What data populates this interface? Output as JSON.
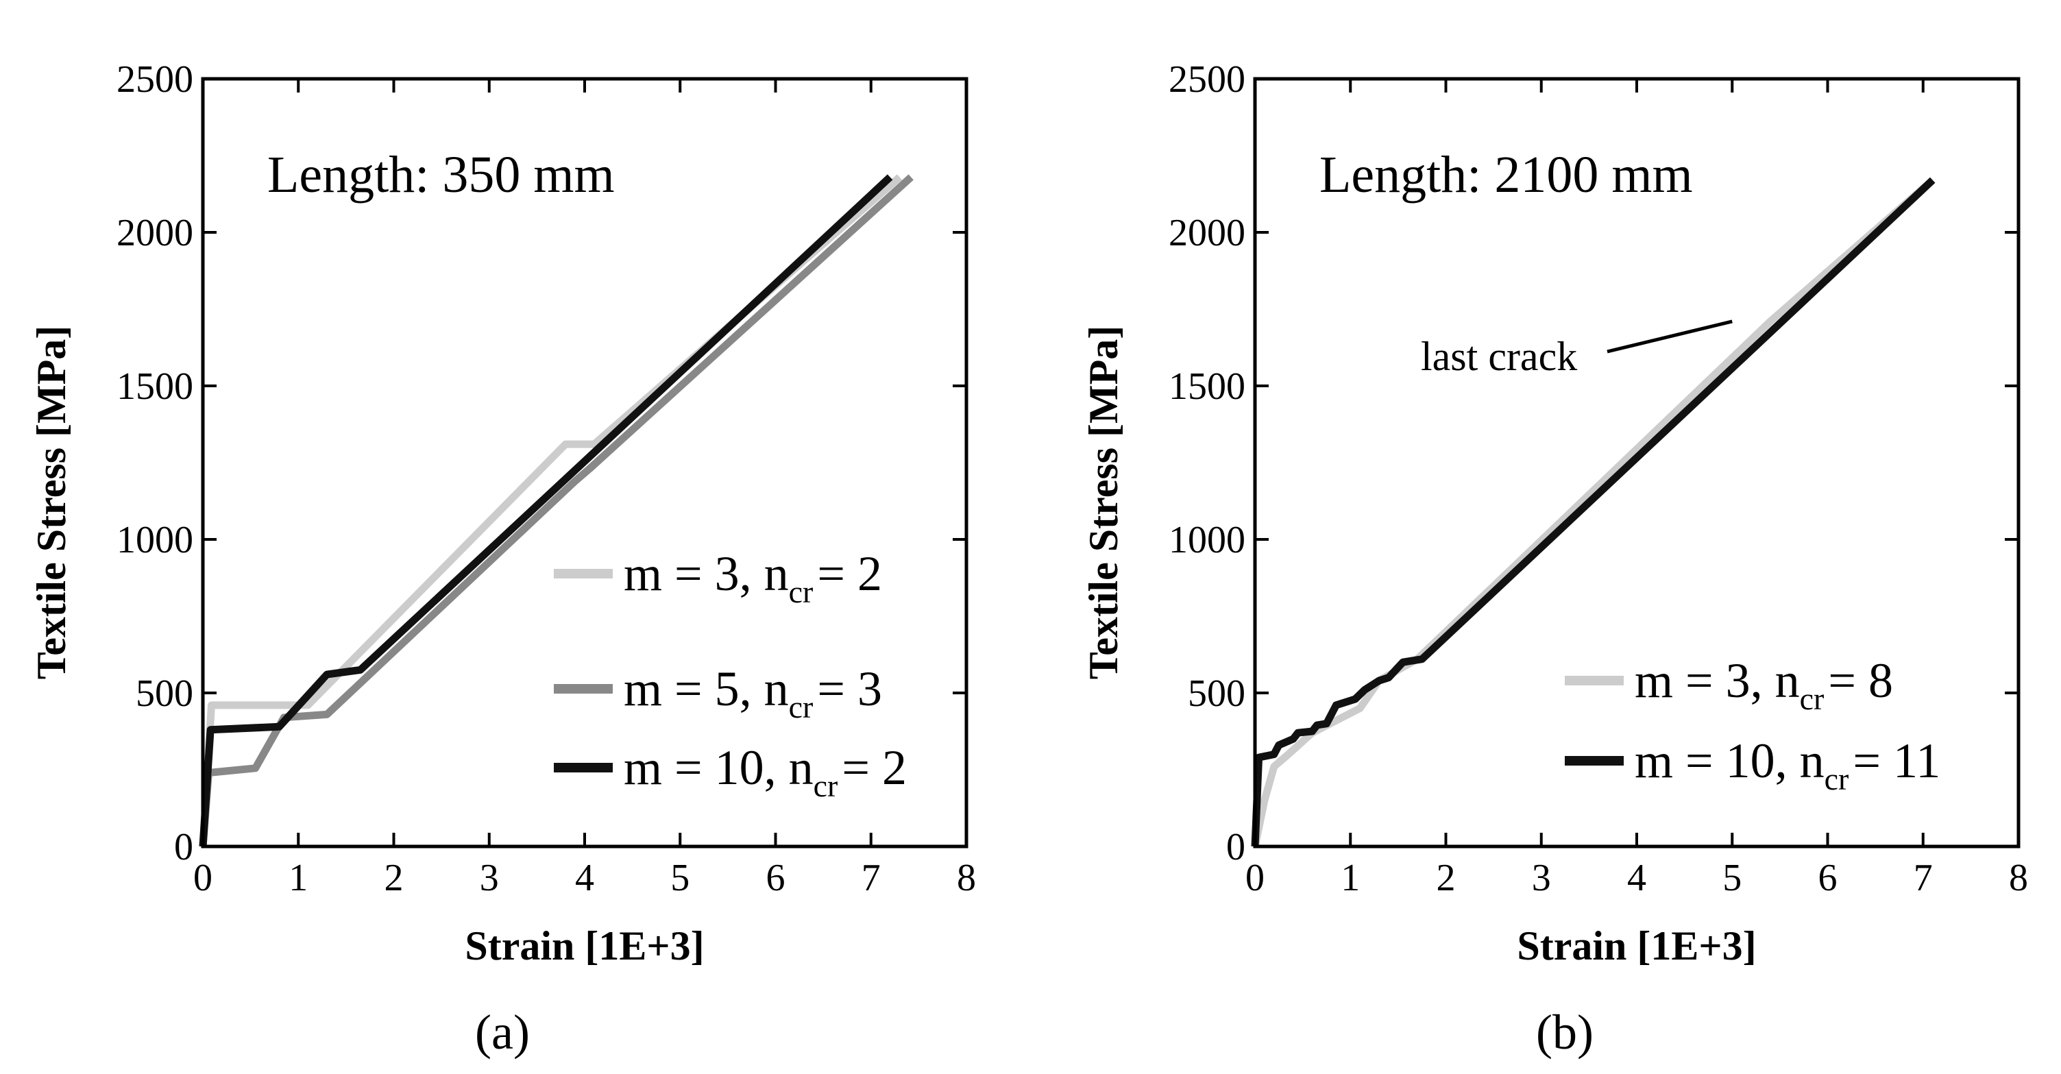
{
  "chart_data": [
    {
      "type": "line",
      "panel": "a",
      "caption": "(a)",
      "title": "Length: 350 mm",
      "xlabel": "Strain [1E+3]",
      "ylabel": "Textile Stress [MPa]",
      "xlim": [
        0,
        8
      ],
      "ylim": [
        0,
        2500
      ],
      "xticks": [
        0,
        1,
        2,
        3,
        4,
        5,
        6,
        7,
        8
      ],
      "yticks": [
        0,
        500,
        1000,
        1500,
        2000,
        2500
      ],
      "grid": false,
      "legend_position": "lower-right",
      "series": [
        {
          "name": "m = 3, ncr = 2",
          "label_main": "m = 3, n",
          "label_sub": "cr",
          "label_tail": "= 2",
          "color": "#cccccc",
          "points": [
            [
              0,
              0
            ],
            [
              0.09,
              460
            ],
            [
              1.1,
              460
            ],
            [
              3.8,
              1310
            ],
            [
              4.1,
              1310
            ],
            [
              7.3,
              2180
            ]
          ]
        },
        {
          "name": "m = 5, ncr = 3",
          "label_main": "m = 5, n",
          "label_sub": "cr",
          "label_tail": "= 3",
          "color": "#888888",
          "points": [
            [
              0,
              0
            ],
            [
              0.06,
              240
            ],
            [
              0.55,
              255
            ],
            [
              0.85,
              420
            ],
            [
              1.3,
              430
            ],
            [
              3.9,
              1190
            ],
            [
              4.05,
              1230
            ],
            [
              7.42,
              2180
            ]
          ]
        },
        {
          "name": "m = 10, ncr = 2",
          "label_main": "m = 10, n",
          "label_sub": "cr",
          "label_tail": "= 2",
          "color": "#111111",
          "points": [
            [
              0,
              0
            ],
            [
              0.08,
              380
            ],
            [
              0.8,
              390
            ],
            [
              1.3,
              560
            ],
            [
              1.65,
              575
            ],
            [
              7.2,
              2180
            ]
          ]
        }
      ]
    },
    {
      "type": "line",
      "panel": "b",
      "caption": "(b)",
      "title": "Length: 2100 mm",
      "xlabel": "Strain [1E+3]",
      "ylabel": "Textile Stress [MPa]",
      "xlim": [
        0,
        8
      ],
      "ylim": [
        0,
        2500
      ],
      "xticks": [
        0,
        1,
        2,
        3,
        4,
        5,
        6,
        7,
        8
      ],
      "yticks": [
        0,
        500,
        1000,
        1500,
        2000,
        2500
      ],
      "grid": false,
      "legend_position": "lower-right",
      "annotation": {
        "text": "last crack",
        "point": [
          5.0,
          1710
        ]
      },
      "series": [
        {
          "name": "m = 3, ncr = 8",
          "label_main": "m = 3, n",
          "label_sub": "cr",
          "label_tail": "= 8",
          "color": "#cccccc",
          "points": [
            [
              0,
              0
            ],
            [
              0.1,
              150
            ],
            [
              0.2,
              260
            ],
            [
              0.35,
              300
            ],
            [
              0.6,
              370
            ],
            [
              1.1,
              450
            ],
            [
              1.3,
              540
            ],
            [
              1.7,
              610
            ],
            [
              5.4,
              1710
            ],
            [
              7.1,
              2170
            ]
          ]
        },
        {
          "name": "m = 10, ncr = 11",
          "label_main": "m = 10, n",
          "label_sub": "cr",
          "label_tail": "= 11",
          "color": "#111111",
          "points": [
            [
              0,
              0
            ],
            [
              0.04,
              290
            ],
            [
              0.2,
              300
            ],
            [
              0.25,
              330
            ],
            [
              0.4,
              350
            ],
            [
              0.45,
              370
            ],
            [
              0.6,
              375
            ],
            [
              0.65,
              395
            ],
            [
              0.75,
              400
            ],
            [
              0.85,
              460
            ],
            [
              1.05,
              480
            ],
            [
              1.15,
              510
            ],
            [
              1.3,
              540
            ],
            [
              1.4,
              550
            ],
            [
              1.55,
              600
            ],
            [
              1.75,
              610
            ],
            [
              7.1,
              2170
            ]
          ]
        }
      ]
    }
  ]
}
